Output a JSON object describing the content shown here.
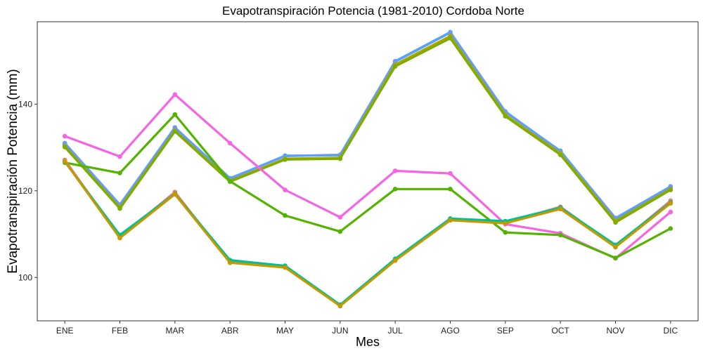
{
  "chart_data": {
    "type": "line",
    "title": "Evapotranspiración Potencia (1981-2010)  Cordoba Norte",
    "xlabel": "Mes",
    "ylabel": "Evapotranspiración Potencia  (mm)",
    "categories": [
      "ENE",
      "FEB",
      "MAR",
      "ABR",
      "MAY",
      "JUN",
      "JUL",
      "AGO",
      "SEP",
      "OCT",
      "NOV",
      "DIC"
    ],
    "ylim": [
      90,
      159
    ],
    "yticks": [
      100,
      120,
      140
    ],
    "grid": false,
    "legend": "none",
    "series": [
      {
        "color": "#00BFC4",
        "values": [
          130.8,
          116.7,
          134.5,
          122.8,
          128.1,
          128.2,
          149.8,
          156.5,
          138.2,
          129.2,
          113.6,
          120.9
        ]
      },
      {
        "color": "#619CFF",
        "values": [
          131.0,
          116.8,
          134.6,
          122.9,
          128.0,
          128.3,
          149.9,
          156.6,
          138.3,
          129.1,
          113.7,
          121.0
        ]
      },
      {
        "color": "#B79F00",
        "values": [
          130.3,
          116.1,
          133.9,
          122.3,
          127.4,
          127.6,
          149.1,
          155.7,
          137.5,
          128.6,
          113.0,
          120.4
        ]
      },
      {
        "color": "#7CAE00",
        "values": [
          130.1,
          115.9,
          133.7,
          122.1,
          127.2,
          127.4,
          148.7,
          155.2,
          137.2,
          128.3,
          112.7,
          120.2
        ]
      },
      {
        "color": "#F564E3",
        "values": [
          132.6,
          127.9,
          142.2,
          131.0,
          120.2,
          113.9,
          124.6,
          124.0,
          112.3,
          110.2,
          104.4,
          115.1
        ]
      },
      {
        "color": "#53B400",
        "values": [
          126.5,
          124.1,
          137.6,
          122.2,
          114.3,
          110.6,
          120.4,
          120.4,
          110.4,
          109.8,
          104.5,
          111.3
        ]
      },
      {
        "color": "#F8766D",
        "values": [
          127.1,
          109.3,
          119.7,
          103.5,
          102.5,
          93.6,
          104.0,
          113.5,
          112.7,
          116.3,
          107.2,
          117.7
        ]
      },
      {
        "color": "#00C094",
        "values": [
          126.7,
          109.8,
          119.3,
          104.0,
          102.7,
          93.7,
          104.3,
          113.6,
          113.0,
          116.1,
          107.5,
          117.3
        ]
      },
      {
        "color": "#C49A00",
        "values": [
          126.8,
          109.1,
          119.2,
          103.4,
          102.3,
          93.4,
          103.9,
          113.2,
          112.5,
          115.8,
          107.0,
          117.1
        ]
      }
    ]
  }
}
